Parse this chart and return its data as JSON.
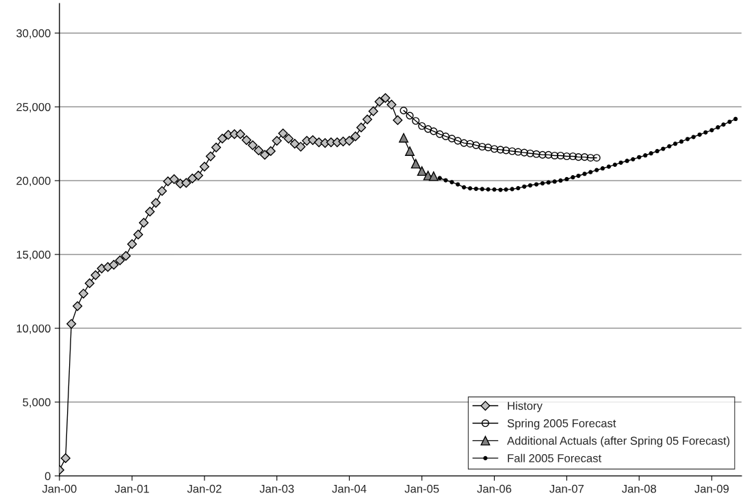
{
  "chart_data": {
    "type": "line",
    "xlim": [
      "2000-01-01",
      "2009-05-31"
    ],
    "xticks": [
      {
        "value": "2000-01",
        "label": "Jan-00"
      },
      {
        "value": "2001-01",
        "label": "Jan-01"
      },
      {
        "value": "2002-01",
        "label": "Jan-02"
      },
      {
        "value": "2003-01",
        "label": "Jan-03"
      },
      {
        "value": "2004-01",
        "label": "Jan-04"
      },
      {
        "value": "2005-01",
        "label": "Jan-05"
      },
      {
        "value": "2006-01",
        "label": "Jan-06"
      },
      {
        "value": "2007-01",
        "label": "Jan-07"
      },
      {
        "value": "2008-01",
        "label": "Jan-08"
      },
      {
        "value": "2009-01",
        "label": "Jan-09"
      }
    ],
    "ylim": [
      0,
      32000
    ],
    "yticks": [
      {
        "value": 0,
        "label": "0"
      },
      {
        "value": 5000,
        "label": "5,000"
      },
      {
        "value": 10000,
        "label": "10,000"
      },
      {
        "value": 15000,
        "label": "15,000"
      },
      {
        "value": 20000,
        "label": "20,000"
      },
      {
        "value": 25000,
        "label": "25,000"
      },
      {
        "value": 30000,
        "label": "30,000"
      }
    ],
    "grid": "y",
    "legend": "bottom right",
    "series": [
      {
        "name": "History",
        "color": "#c0c0c0",
        "marker": "diamond",
        "x": [
          "2000-01",
          "2000-02",
          "2000-03",
          "2000-04",
          "2000-05",
          "2000-06",
          "2000-07",
          "2000-08",
          "2000-09",
          "2000-10",
          "2000-11",
          "2000-12",
          "2001-01",
          "2001-02",
          "2001-03",
          "2001-04",
          "2001-05",
          "2001-06",
          "2001-07",
          "2001-08",
          "2001-09",
          "2001-10",
          "2001-11",
          "2001-12",
          "2002-01",
          "2002-02",
          "2002-03",
          "2002-04",
          "2002-05",
          "2002-06",
          "2002-07",
          "2002-08",
          "2002-09",
          "2002-10",
          "2002-11",
          "2002-12",
          "2003-01",
          "2003-02",
          "2003-03",
          "2003-04",
          "2003-05",
          "2003-06",
          "2003-07",
          "2003-08",
          "2003-09",
          "2003-10",
          "2003-11",
          "2003-12",
          "2004-01",
          "2004-02",
          "2004-03",
          "2004-04",
          "2004-05",
          "2004-06",
          "2004-07",
          "2004-08",
          "2004-09"
        ],
        "values": [
          400,
          1200,
          10300,
          11500,
          12350,
          13050,
          13600,
          14050,
          14150,
          14300,
          14600,
          14900,
          15700,
          16350,
          17150,
          17900,
          18500,
          19300,
          19950,
          20100,
          19800,
          19850,
          20150,
          20350,
          20950,
          21650,
          22250,
          22850,
          23100,
          23150,
          23150,
          22750,
          22400,
          22050,
          21750,
          22000,
          22700,
          23200,
          22850,
          22500,
          22300,
          22700,
          22750,
          22600,
          22550,
          22600,
          22600,
          22650,
          22700,
          23000,
          23600,
          24150,
          24700,
          25350,
          25600,
          25150,
          24100
        ]
      },
      {
        "name": "Spring 2005 Forecast",
        "color": "#000000",
        "marker": "circle",
        "x": [
          "2004-10",
          "2004-11",
          "2004-12",
          "2005-01",
          "2005-02",
          "2005-03",
          "2005-04",
          "2005-05",
          "2005-06",
          "2005-07",
          "2005-08",
          "2005-09",
          "2005-10",
          "2005-11",
          "2005-12",
          "2006-01",
          "2006-02",
          "2006-03",
          "2006-04",
          "2006-05",
          "2006-06",
          "2006-07",
          "2006-08",
          "2006-09",
          "2006-10",
          "2006-11",
          "2006-12",
          "2007-01",
          "2007-02",
          "2007-03",
          "2007-04",
          "2007-05",
          "2007-06"
        ],
        "values": [
          24750,
          24400,
          24050,
          23700,
          23500,
          23350,
          23150,
          23000,
          22850,
          22700,
          22550,
          22500,
          22400,
          22300,
          22250,
          22150,
          22100,
          22050,
          22000,
          21950,
          21900,
          21850,
          21800,
          21750,
          21750,
          21700,
          21700,
          21650,
          21650,
          21600,
          21600,
          21550,
          21550
        ]
      },
      {
        "name": "Additional Actuals (after Spring 05 Forecast)",
        "color": "#808080",
        "marker": "triangle",
        "x": [
          "2004-10",
          "2004-11",
          "2004-12",
          "2005-01",
          "2005-02",
          "2005-03"
        ],
        "values": [
          22900,
          22000,
          21150,
          20650,
          20350,
          20300
        ]
      },
      {
        "name": "Fall 2005 Forecast",
        "color": "#000000",
        "marker": "dot",
        "x": [
          "2005-04",
          "2005-05",
          "2005-06",
          "2005-07",
          "2005-08",
          "2005-09",
          "2005-10",
          "2005-11",
          "2005-12",
          "2006-01",
          "2006-02",
          "2006-03",
          "2006-04",
          "2006-05",
          "2006-06",
          "2006-07",
          "2006-08",
          "2006-09",
          "2006-10",
          "2006-11",
          "2006-12",
          "2007-01",
          "2007-02",
          "2007-03",
          "2007-04",
          "2007-05",
          "2007-06",
          "2007-07",
          "2007-08",
          "2007-09",
          "2007-10",
          "2007-11",
          "2007-12",
          "2008-01",
          "2008-02",
          "2008-03",
          "2008-04",
          "2008-05",
          "2008-06",
          "2008-07",
          "2008-08",
          "2008-09",
          "2008-10",
          "2008-11",
          "2008-12",
          "2009-01",
          "2009-02",
          "2009-03",
          "2009-04",
          "2009-05"
        ],
        "values": [
          20170,
          20030,
          19900,
          19750,
          19550,
          19480,
          19450,
          19430,
          19410,
          19400,
          19380,
          19400,
          19430,
          19490,
          19600,
          19680,
          19750,
          19820,
          19880,
          19940,
          20010,
          20100,
          20230,
          20330,
          20460,
          20580,
          20720,
          20830,
          20950,
          21080,
          21220,
          21340,
          21450,
          21590,
          21710,
          21850,
          22000,
          22160,
          22330,
          22500,
          22650,
          22820,
          22960,
          23120,
          23270,
          23420,
          23610,
          23800,
          23990,
          24180
        ]
      }
    ]
  }
}
